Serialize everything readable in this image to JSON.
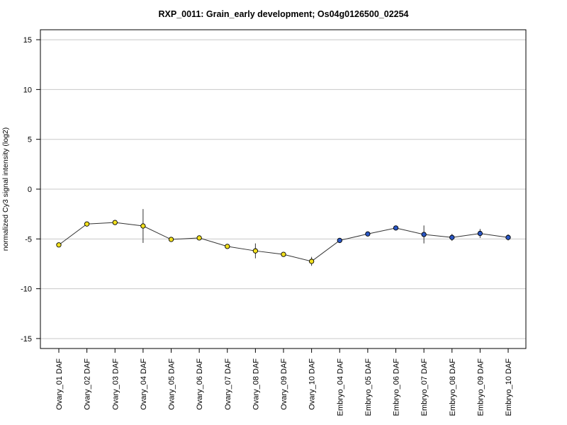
{
  "chart_data": {
    "type": "line",
    "title": "RXP_0011: Grain_early development; Os04g0126500_02254",
    "xlabel": "",
    "ylabel": "normalized Cy3 signal intensity (log2)",
    "ylim": [
      -16,
      16
    ],
    "yticks": [
      15,
      10,
      5,
      0,
      -5,
      -10,
      -15
    ],
    "grid": true,
    "categories": [
      "Ovary_01 DAF",
      "Ovary_02 DAF",
      "Ovary_03 DAF",
      "Ovary_04 DAF",
      "Ovary_05 DAF",
      "Ovary_06 DAF",
      "Ovary_07 DAF",
      "Ovary_08 DAF",
      "Ovary_09 DAF",
      "Ovary_10 DAF",
      "Embryo_04 DAF",
      "Embryo_05 DAF",
      "Embryo_06 DAF",
      "Embryo_07 DAF",
      "Embryo_08 DAF",
      "Embryo_09 DAF",
      "Embryo_10 DAF"
    ],
    "values": [
      -5.6,
      -3.5,
      -3.35,
      -3.7,
      -5.05,
      -4.9,
      -5.75,
      -6.2,
      -6.55,
      -7.25,
      -5.15,
      -4.5,
      -3.9,
      -4.55,
      -4.85,
      -4.45,
      -4.85
    ],
    "errors": [
      0.2,
      0.15,
      0.15,
      1.7,
      0.2,
      0.15,
      0.15,
      0.75,
      0.15,
      0.45,
      0.15,
      0.15,
      0.15,
      0.9,
      0.35,
      0.45,
      0.3
    ],
    "point_colors": [
      "#f2e01f",
      "#f2e01f",
      "#f2e01f",
      "#f2e01f",
      "#f2e01f",
      "#f2e01f",
      "#f2e01f",
      "#f2e01f",
      "#f2e01f",
      "#f2e01f",
      "#2a57c5",
      "#2a57c5",
      "#2a57c5",
      "#2a57c5",
      "#2a57c5",
      "#2a57c5",
      "#2a57c5"
    ],
    "line_color": "#333333",
    "grid_color": "#c8c8c8"
  }
}
